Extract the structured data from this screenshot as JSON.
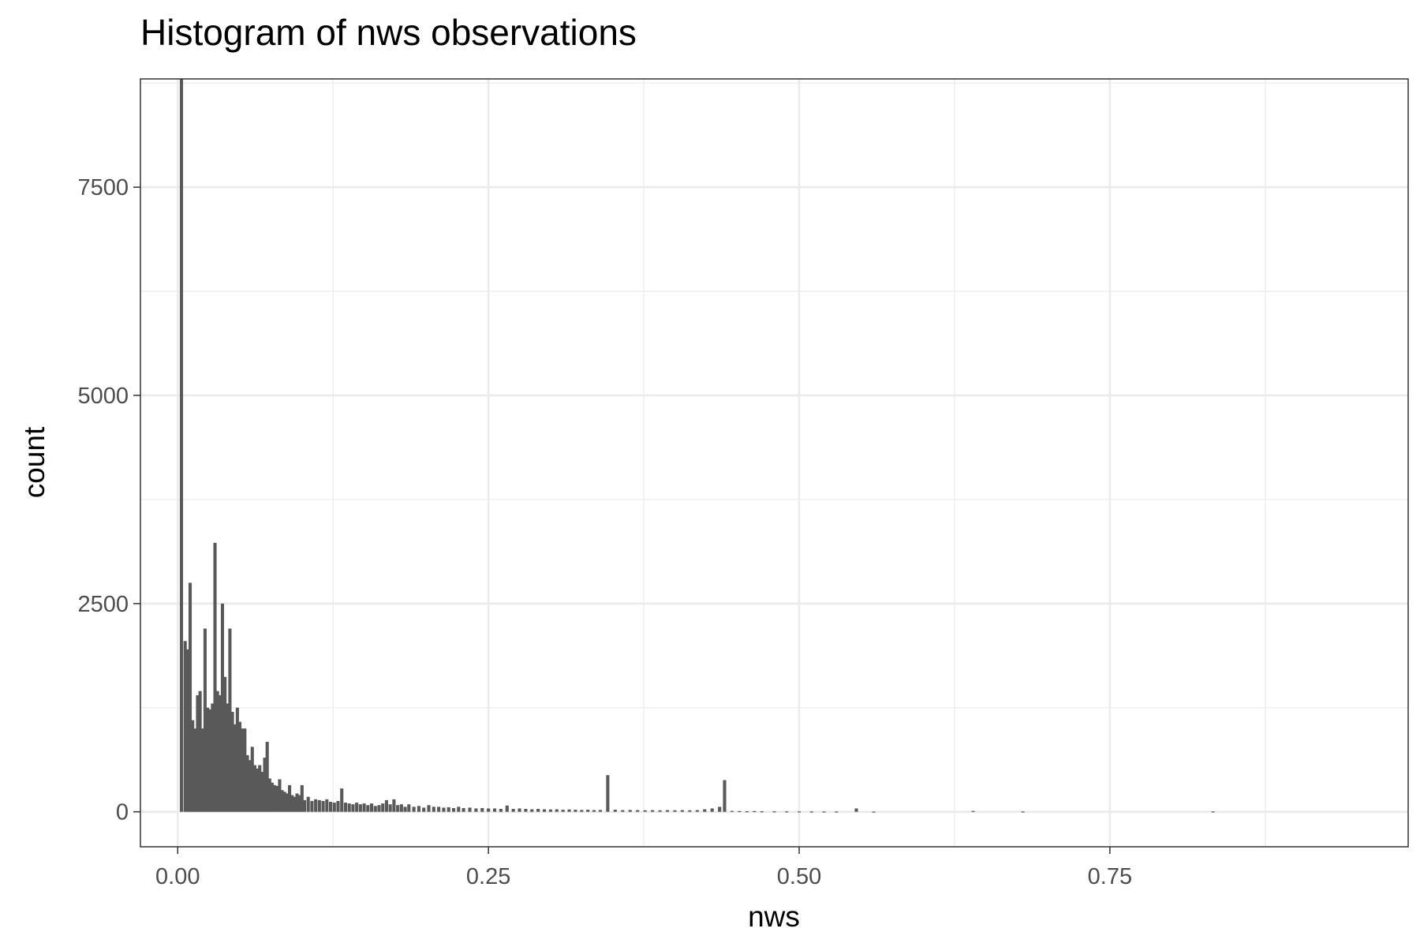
{
  "chart_data": {
    "type": "bar",
    "title": "Histogram of nws observations",
    "xlabel": "nws",
    "ylabel": "count",
    "xlim": [
      -0.03,
      0.99
    ],
    "ylim": [
      -420,
      8800
    ],
    "x_ticks": [
      0.0,
      0.25,
      0.5,
      0.75
    ],
    "x_tick_labels": [
      "0.00",
      "0.25",
      "0.50",
      "0.75"
    ],
    "y_ticks": [
      0,
      2500,
      5000,
      7500
    ],
    "y_tick_labels": [
      "0",
      "2500",
      "5000",
      "7500"
    ],
    "grid": true,
    "bar_color": "#595959",
    "series": [
      {
        "bins": [
          [
            0.003,
            8800
          ],
          [
            0.006,
            2050
          ],
          [
            0.008,
            1950
          ],
          [
            0.01,
            2750
          ],
          [
            0.012,
            1100
          ],
          [
            0.014,
            1000
          ],
          [
            0.016,
            1400
          ],
          [
            0.018,
            1450
          ],
          [
            0.02,
            1000
          ],
          [
            0.022,
            2200
          ],
          [
            0.024,
            1250
          ],
          [
            0.026,
            1230
          ],
          [
            0.028,
            1300
          ],
          [
            0.03,
            3230
          ],
          [
            0.032,
            1450
          ],
          [
            0.034,
            1400
          ],
          [
            0.036,
            2500
          ],
          [
            0.038,
            1620
          ],
          [
            0.04,
            1300
          ],
          [
            0.042,
            2200
          ],
          [
            0.044,
            1200
          ],
          [
            0.046,
            1050
          ],
          [
            0.048,
            1250
          ],
          [
            0.05,
            1080
          ],
          [
            0.052,
            1000
          ],
          [
            0.054,
            1000
          ],
          [
            0.056,
            680
          ],
          [
            0.058,
            620
          ],
          [
            0.06,
            780
          ],
          [
            0.062,
            560
          ],
          [
            0.064,
            520
          ],
          [
            0.066,
            560
          ],
          [
            0.068,
            480
          ],
          [
            0.07,
            650
          ],
          [
            0.072,
            840
          ],
          [
            0.074,
            400
          ],
          [
            0.076,
            350
          ],
          [
            0.078,
            320
          ],
          [
            0.08,
            310
          ],
          [
            0.082,
            390
          ],
          [
            0.084,
            260
          ],
          [
            0.086,
            240
          ],
          [
            0.088,
            220
          ],
          [
            0.09,
            320
          ],
          [
            0.092,
            200
          ],
          [
            0.094,
            180
          ],
          [
            0.096,
            220
          ],
          [
            0.098,
            200
          ],
          [
            0.1,
            320
          ],
          [
            0.102,
            140
          ],
          [
            0.105,
            180
          ],
          [
            0.108,
            130
          ],
          [
            0.111,
            150
          ],
          [
            0.114,
            140
          ],
          [
            0.117,
            130
          ],
          [
            0.12,
            150
          ],
          [
            0.123,
            120
          ],
          [
            0.126,
            110
          ],
          [
            0.129,
            130
          ],
          [
            0.132,
            280
          ],
          [
            0.135,
            110
          ],
          [
            0.138,
            100
          ],
          [
            0.141,
            90
          ],
          [
            0.144,
            110
          ],
          [
            0.147,
            90
          ],
          [
            0.15,
            100
          ],
          [
            0.153,
            80
          ],
          [
            0.156,
            100
          ],
          [
            0.159,
            70
          ],
          [
            0.162,
            80
          ],
          [
            0.165,
            100
          ],
          [
            0.168,
            140
          ],
          [
            0.171,
            90
          ],
          [
            0.174,
            150
          ],
          [
            0.177,
            80
          ],
          [
            0.18,
            90
          ],
          [
            0.183,
            60
          ],
          [
            0.186,
            90
          ],
          [
            0.19,
            60
          ],
          [
            0.194,
            70
          ],
          [
            0.198,
            50
          ],
          [
            0.202,
            80
          ],
          [
            0.206,
            60
          ],
          [
            0.21,
            60
          ],
          [
            0.214,
            50
          ],
          [
            0.218,
            55
          ],
          [
            0.222,
            45
          ],
          [
            0.226,
            60
          ],
          [
            0.23,
            45
          ],
          [
            0.235,
            50
          ],
          [
            0.24,
            40
          ],
          [
            0.245,
            45
          ],
          [
            0.25,
            40
          ],
          [
            0.255,
            40
          ],
          [
            0.26,
            35
          ],
          [
            0.265,
            75
          ],
          [
            0.27,
            35
          ],
          [
            0.275,
            40
          ],
          [
            0.28,
            35
          ],
          [
            0.285,
            30
          ],
          [
            0.29,
            35
          ],
          [
            0.295,
            30
          ],
          [
            0.3,
            28
          ],
          [
            0.305,
            30
          ],
          [
            0.31,
            25
          ],
          [
            0.315,
            28
          ],
          [
            0.32,
            25
          ],
          [
            0.325,
            22
          ],
          [
            0.33,
            25
          ],
          [
            0.335,
            20
          ],
          [
            0.34,
            22
          ],
          [
            0.346,
            440
          ],
          [
            0.352,
            25
          ],
          [
            0.358,
            20
          ],
          [
            0.364,
            22
          ],
          [
            0.37,
            20
          ],
          [
            0.376,
            18
          ],
          [
            0.382,
            20
          ],
          [
            0.388,
            18
          ],
          [
            0.394,
            20
          ],
          [
            0.4,
            18
          ],
          [
            0.406,
            20
          ],
          [
            0.412,
            18
          ],
          [
            0.418,
            20
          ],
          [
            0.424,
            30
          ],
          [
            0.43,
            40
          ],
          [
            0.436,
            60
          ],
          [
            0.44,
            380
          ],
          [
            0.446,
            10
          ],
          [
            0.452,
            8
          ],
          [
            0.458,
            6
          ],
          [
            0.464,
            8
          ],
          [
            0.47,
            6
          ],
          [
            0.48,
            5
          ],
          [
            0.49,
            4
          ],
          [
            0.5,
            4
          ],
          [
            0.51,
            3
          ],
          [
            0.52,
            3
          ],
          [
            0.53,
            3
          ],
          [
            0.546,
            40
          ],
          [
            0.56,
            2
          ],
          [
            0.64,
            10
          ],
          [
            0.68,
            4
          ],
          [
            0.833,
            4
          ]
        ]
      }
    ]
  }
}
